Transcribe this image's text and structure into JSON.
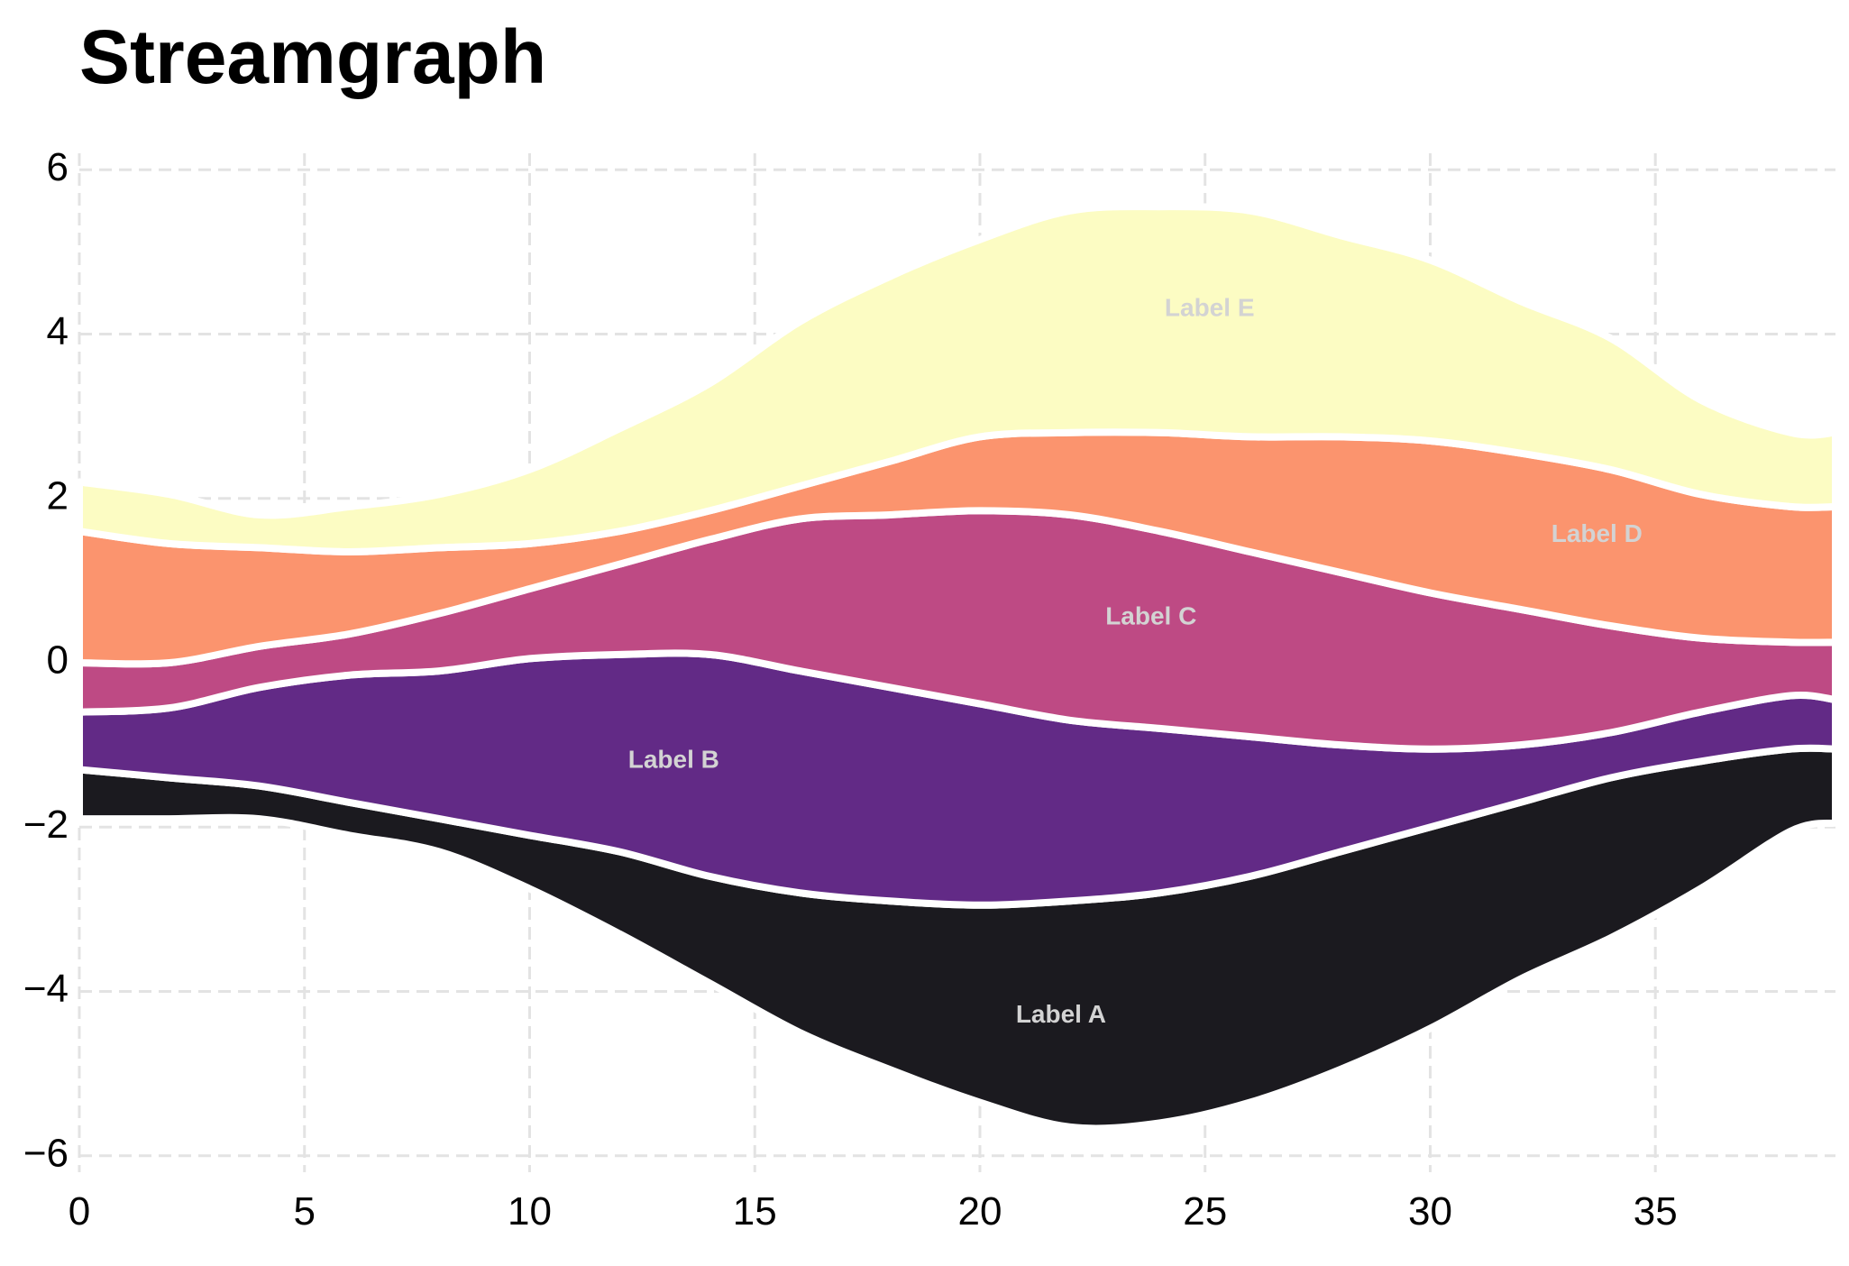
{
  "chart_data": {
    "type": "area",
    "title": "Streamgraph",
    "xlabel": "",
    "ylabel": "",
    "xlim": [
      0,
      39
    ],
    "ylim": [
      -6.2,
      6.2
    ],
    "grid": true,
    "legend": "none",
    "x_ticks": [
      0,
      5,
      10,
      15,
      20,
      25,
      30,
      35
    ],
    "y_ticks": [
      -6,
      -4,
      -2,
      0,
      2,
      4,
      6
    ],
    "x_tick_labels": [
      "0",
      "5",
      "10",
      "15",
      "20",
      "25",
      "30",
      "35"
    ],
    "y_tick_labels": [
      "−6",
      "−4",
      "−2",
      "0",
      "2",
      "4",
      "6"
    ],
    "x": [
      0,
      2,
      4,
      6,
      8,
      10,
      12,
      14,
      16,
      18,
      20,
      22,
      24,
      26,
      28,
      30,
      32,
      34,
      36,
      38,
      39
    ],
    "boundaries": [
      [
        -1.9,
        -1.9,
        -1.9,
        -2.1,
        -2.3,
        -2.75,
        -3.3,
        -3.9,
        -4.5,
        -4.95,
        -5.35,
        -5.65,
        -5.6,
        -5.35,
        -4.95,
        -4.45,
        -3.85,
        -3.35,
        -2.75,
        -2.05,
        -1.95
      ],
      [
        -1.3,
        -1.4,
        -1.5,
        -1.7,
        -1.9,
        -2.1,
        -2.3,
        -2.6,
        -2.8,
        -2.9,
        -2.95,
        -2.9,
        -2.8,
        -2.6,
        -2.3,
        -2.0,
        -1.7,
        -1.4,
        -1.2,
        -1.05,
        -1.05
      ],
      [
        -0.6,
        -0.55,
        -0.3,
        -0.15,
        -0.1,
        0.05,
        0.1,
        0.1,
        -0.1,
        -0.3,
        -0.5,
        -0.7,
        -0.8,
        -0.9,
        -1.0,
        -1.05,
        -1.0,
        -0.85,
        -0.6,
        -0.4,
        -0.45
      ],
      [
        0.0,
        0.0,
        0.2,
        0.35,
        0.6,
        0.9,
        1.2,
        1.5,
        1.75,
        1.8,
        1.85,
        1.8,
        1.6,
        1.35,
        1.1,
        0.85,
        0.65,
        0.45,
        0.3,
        0.25,
        0.25
      ],
      [
        1.6,
        1.45,
        1.4,
        1.35,
        1.4,
        1.45,
        1.6,
        1.85,
        2.15,
        2.45,
        2.75,
        2.8,
        2.8,
        2.75,
        2.75,
        2.7,
        2.55,
        2.35,
        2.05,
        1.9,
        1.9
      ],
      [
        2.2,
        2.05,
        1.8,
        1.9,
        2.05,
        2.35,
        2.85,
        3.4,
        4.15,
        4.7,
        5.15,
        5.5,
        5.55,
        5.5,
        5.2,
        4.9,
        4.4,
        3.95,
        3.2,
        2.8,
        2.8
      ]
    ],
    "series": [
      {
        "name": "Label A",
        "color": "#1b1a1f",
        "label_at": [
          21.8,
          -4.3
        ]
      },
      {
        "name": "Label B",
        "color": "#622a86",
        "label_at": [
          13.2,
          -1.2
        ]
      },
      {
        "name": "Label C",
        "color": "#be4a84",
        "label_at": [
          23.8,
          0.55
        ]
      },
      {
        "name": "Label D",
        "color": "#fb946e",
        "label_at": [
          33.7,
          1.55
        ]
      },
      {
        "name": "Label E",
        "color": "#fcfcc3",
        "label_at": [
          25.1,
          4.3
        ]
      }
    ]
  }
}
